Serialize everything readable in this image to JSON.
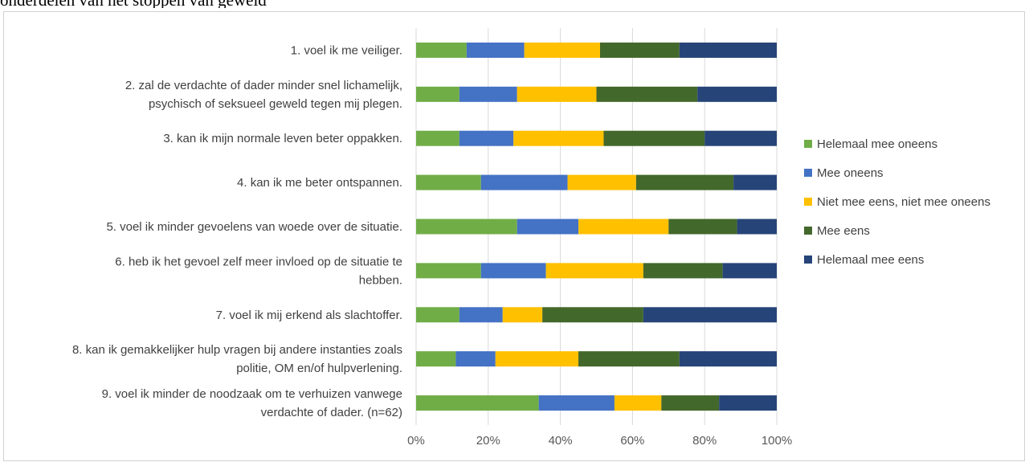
{
  "header_snippet": "onderdelen van het stoppen van geweld",
  "chart_data": {
    "type": "bar",
    "orientation": "horizontal",
    "stacked": "percent",
    "categories": [
      [
        "1. voel ik me veiliger."
      ],
      [
        "2. zal de verdachte of dader minder snel lichamelijk,",
        "psychisch of seksueel geweld tegen mij plegen."
      ],
      [
        "3. kan ik mijn normale leven beter oppakken."
      ],
      [
        "4. kan ik me beter ontspannen."
      ],
      [
        "5. voel ik minder gevoelens van woede over de situatie."
      ],
      [
        "6. heb ik het gevoel zelf meer invloed op de situatie te",
        "hebben."
      ],
      [
        "7. voel ik mij erkend als slachtoffer."
      ],
      [
        "8. kan ik gemakkelijker hulp vragen bij andere instanties zoals",
        "politie, OM en/of hulpverlening."
      ],
      [
        "9. voel ik minder de noodzaak om te verhuizen vanwege",
        "verdachte of dader. (n=62)"
      ]
    ],
    "series": [
      {
        "name": "Helemaal mee oneens",
        "color": "#70ad47",
        "values": [
          14,
          12,
          12,
          18,
          28,
          18,
          12,
          11,
          34
        ]
      },
      {
        "name": "Mee oneens",
        "color": "#4472c4",
        "values": [
          16,
          16,
          15,
          24,
          17,
          18,
          12,
          11,
          21
        ]
      },
      {
        "name": "Niet mee eens, niet mee oneens",
        "color": "#ffc000",
        "values": [
          21,
          22,
          25,
          19,
          25,
          27,
          11,
          23,
          13
        ]
      },
      {
        "name": "Mee eens",
        "color": "#43682b",
        "values": [
          22,
          28,
          28,
          27,
          19,
          22,
          28,
          28,
          16
        ]
      },
      {
        "name": "Helemaal mee eens",
        "color": "#264478",
        "values": [
          27,
          22,
          20,
          12,
          11,
          15,
          37,
          27,
          16
        ]
      }
    ],
    "x_ticks": [
      "0%",
      "20%",
      "40%",
      "60%",
      "80%",
      "100%"
    ],
    "xlim": [
      0,
      100
    ],
    "grid": true,
    "legend_position": "right"
  }
}
